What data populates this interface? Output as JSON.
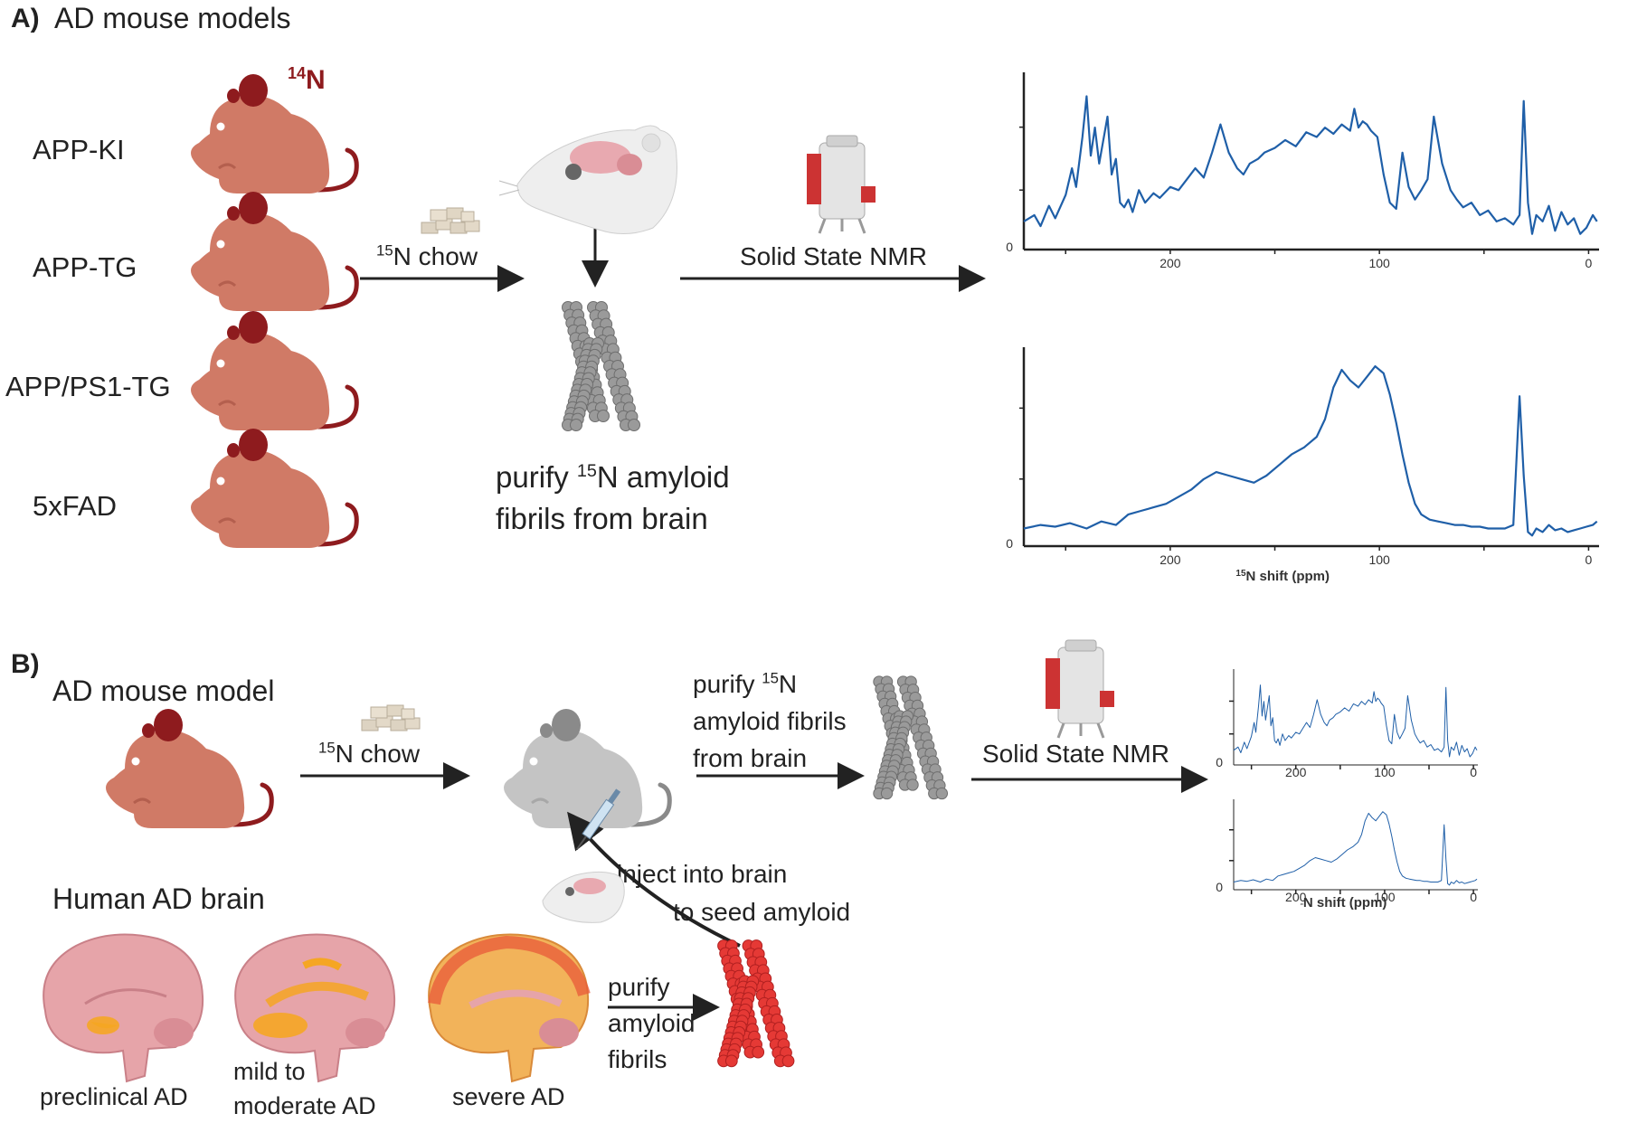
{
  "panel_a": {
    "label": "A)",
    "title": "AD mouse models",
    "isotope_tag": {
      "sup": "14",
      "base": "N"
    },
    "models": [
      "APP-KI",
      "APP-TG",
      "APP/PS1-TG",
      "5xFAD"
    ],
    "chow": {
      "sup": "15",
      "text": "N chow"
    },
    "purify": {
      "line1_pre": "purify ",
      "sup": "15",
      "line1_post": "N amyloid",
      "line2": "fibrils from brain"
    },
    "nmr_label": "Solid State NMR"
  },
  "panel_b": {
    "label": "B)",
    "title": "AD mouse model",
    "chow": {
      "sup": "15",
      "text": "N chow"
    },
    "purify": {
      "line1_pre": "purify ",
      "sup": "15",
      "line1_post": "N",
      "line2": "amyloid fibrils",
      "line3": "from brain"
    },
    "nmr_label": "Solid State NMR",
    "inject": {
      "line1": "inject into brain",
      "line2": "to seed amyloid"
    },
    "human_title": "Human AD brain",
    "purify_human": {
      "line1": "purify",
      "line2": "amyloid",
      "line3": "fibrils"
    },
    "stages": [
      {
        "line1": "preclinical AD",
        "line2": ""
      },
      {
        "line1": "mild to",
        "line2": "moderate AD"
      },
      {
        "line1": "severe AD",
        "line2": ""
      }
    ]
  },
  "colors": {
    "mouse": "#d07a66",
    "mouse_ear": "#8e1b1e",
    "mouse_tail": "#8e1b1e",
    "gray_mouse": "#c4c4c4",
    "spectrum_line": "#1f5fa8",
    "fibril_gray": "#9a9a9a",
    "fibril_red": "#e53935",
    "brain_pink": "#e6a4a9",
    "ad_orange": "#f5a623",
    "arrow": "#222222"
  },
  "chart_data": [
    {
      "type": "line",
      "title": "",
      "xlabel": "",
      "ylabel": "",
      "xlim": [
        270,
        -5
      ],
      "xticks": [
        "200",
        "100",
        "0"
      ],
      "yticks": [
        "0"
      ],
      "series": [
        {
          "x": [
            270,
            265,
            262,
            258,
            255,
            250,
            247,
            245,
            242,
            240,
            238,
            236,
            234,
            232,
            230,
            228,
            226,
            224,
            222,
            220,
            218,
            215,
            212,
            208,
            205,
            200,
            196,
            192,
            188,
            184,
            180,
            176,
            172,
            168,
            165,
            162,
            158,
            155,
            150,
            145,
            140,
            135,
            130,
            126,
            122,
            118,
            114,
            112,
            110,
            108,
            106,
            104,
            101,
            98,
            95,
            92,
            89,
            86,
            83,
            80,
            77,
            74,
            70,
            66,
            63,
            60,
            56,
            52,
            48,
            44,
            40,
            36,
            33,
            31,
            29,
            27,
            25,
            22,
            19,
            16,
            13,
            10,
            7,
            4,
            1,
            -2,
            -4
          ],
          "y": [
            0.18,
            0.22,
            0.15,
            0.28,
            0.2,
            0.35,
            0.52,
            0.4,
            0.72,
            0.98,
            0.6,
            0.78,
            0.55,
            0.7,
            0.85,
            0.48,
            0.58,
            0.3,
            0.27,
            0.32,
            0.24,
            0.38,
            0.3,
            0.36,
            0.33,
            0.4,
            0.38,
            0.45,
            0.52,
            0.46,
            0.62,
            0.8,
            0.62,
            0.52,
            0.48,
            0.55,
            0.58,
            0.62,
            0.65,
            0.7,
            0.66,
            0.75,
            0.72,
            0.78,
            0.74,
            0.8,
            0.76,
            0.9,
            0.78,
            0.82,
            0.8,
            0.76,
            0.72,
            0.48,
            0.3,
            0.26,
            0.62,
            0.4,
            0.32,
            0.38,
            0.45,
            0.85,
            0.55,
            0.38,
            0.32,
            0.27,
            0.3,
            0.22,
            0.25,
            0.18,
            0.2,
            0.16,
            0.22,
            0.95,
            0.3,
            0.1,
            0.22,
            0.18,
            0.28,
            0.12,
            0.24,
            0.16,
            0.2,
            0.1,
            0.14,
            0.22,
            0.18
          ]
        }
      ]
    },
    {
      "type": "line",
      "title": "",
      "xlabel": {
        "sup": "15",
        "text": "N shift (ppm)"
      },
      "ylabel": "",
      "xlim": [
        270,
        -5
      ],
      "xticks": [
        "200",
        "100",
        "0"
      ],
      "yticks": [
        "0"
      ],
      "series": [
        {
          "x": [
            270,
            262,
            255,
            248,
            240,
            233,
            226,
            220,
            214,
            208,
            202,
            196,
            190,
            184,
            178,
            172,
            166,
            160,
            154,
            148,
            142,
            136,
            130,
            126,
            122,
            118,
            114,
            110,
            106,
            102,
            98,
            95,
            92,
            89,
            86,
            83,
            80,
            76,
            72,
            68,
            64,
            60,
            56,
            52,
            48,
            44,
            40,
            36,
            33,
            31,
            29,
            27,
            25,
            22,
            19,
            16,
            13,
            10,
            7,
            4,
            1,
            -2,
            -4
          ],
          "y": [
            0.1,
            0.12,
            0.11,
            0.13,
            0.1,
            0.14,
            0.12,
            0.18,
            0.2,
            0.22,
            0.24,
            0.28,
            0.32,
            0.38,
            0.42,
            0.4,
            0.38,
            0.36,
            0.4,
            0.46,
            0.52,
            0.56,
            0.62,
            0.72,
            0.9,
            1.0,
            0.94,
            0.9,
            0.96,
            1.02,
            0.98,
            0.86,
            0.7,
            0.52,
            0.36,
            0.24,
            0.18,
            0.15,
            0.14,
            0.13,
            0.12,
            0.12,
            0.11,
            0.11,
            0.1,
            0.1,
            0.1,
            0.12,
            0.85,
            0.4,
            0.08,
            0.06,
            0.1,
            0.08,
            0.12,
            0.09,
            0.1,
            0.08,
            0.09,
            0.1,
            0.11,
            0.12,
            0.14
          ]
        }
      ]
    }
  ]
}
